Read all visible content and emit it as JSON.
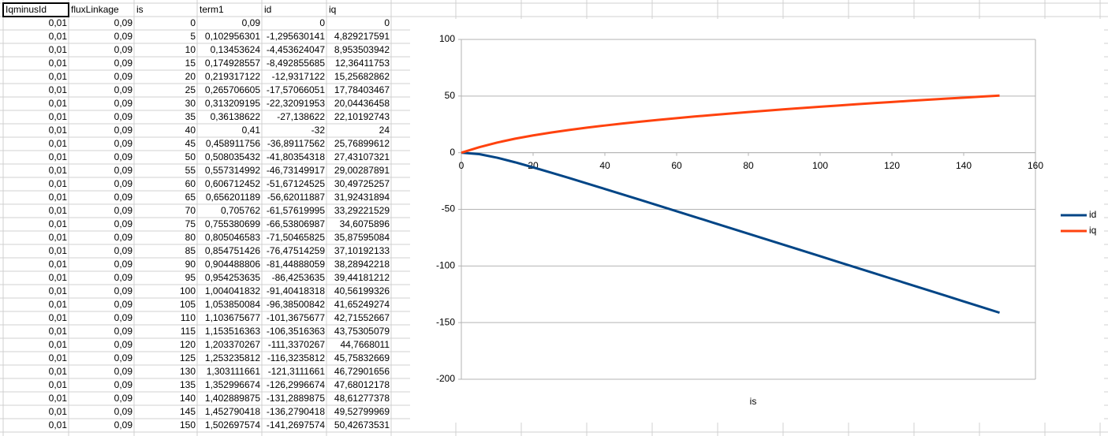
{
  "table": {
    "header": [
      "IqminusId",
      "fluxLinkage",
      "is",
      "term1",
      "id",
      "iq"
    ],
    "rows": [
      [
        "0,01",
        "0,09",
        "0",
        "0,09",
        "0",
        "0"
      ],
      [
        "0,01",
        "0,09",
        "5",
        "0,102956301",
        "-1,295630141",
        "4,829217591"
      ],
      [
        "0,01",
        "0,09",
        "10",
        "0,13453624",
        "-4,453624047",
        "8,953503942"
      ],
      [
        "0,01",
        "0,09",
        "15",
        "0,174928557",
        "-8,492855685",
        "12,36411753"
      ],
      [
        "0,01",
        "0,09",
        "20",
        "0,219317122",
        "-12,9317122",
        "15,25682862"
      ],
      [
        "0,01",
        "0,09",
        "25",
        "0,265706605",
        "-17,57066051",
        "17,78403467"
      ],
      [
        "0,01",
        "0,09",
        "30",
        "0,313209195",
        "-22,32091953",
        "20,04436458"
      ],
      [
        "0,01",
        "0,09",
        "35",
        "0,36138622",
        "-27,138622",
        "22,10192743"
      ],
      [
        "0,01",
        "0,09",
        "40",
        "0,41",
        "-32",
        "24"
      ],
      [
        "0,01",
        "0,09",
        "45",
        "0,458911756",
        "-36,89117562",
        "25,76899612"
      ],
      [
        "0,01",
        "0,09",
        "50",
        "0,508035432",
        "-41,80354318",
        "27,43107321"
      ],
      [
        "0,01",
        "0,09",
        "55",
        "0,557314992",
        "-46,73149917",
        "29,00287891"
      ],
      [
        "0,01",
        "0,09",
        "60",
        "0,606712452",
        "-51,67124525",
        "30,49725257"
      ],
      [
        "0,01",
        "0,09",
        "65",
        "0,656201189",
        "-56,62011887",
        "31,92431894"
      ],
      [
        "0,01",
        "0,09",
        "70",
        "0,705762",
        "-61,57619995",
        "33,29221529"
      ],
      [
        "0,01",
        "0,09",
        "75",
        "0,755380699",
        "-66,53806987",
        "34,6075896"
      ],
      [
        "0,01",
        "0,09",
        "80",
        "0,805046583",
        "-71,50465825",
        "35,87595084"
      ],
      [
        "0,01",
        "0,09",
        "85",
        "0,854751426",
        "-76,47514259",
        "37,10192133"
      ],
      [
        "0,01",
        "0,09",
        "90",
        "0,904488806",
        "-81,44888059",
        "38,28942218"
      ],
      [
        "0,01",
        "0,09",
        "95",
        "0,954253635",
        "-86,4253635",
        "39,44181212"
      ],
      [
        "0,01",
        "0,09",
        "100",
        "1,004041832",
        "-91,40418318",
        "40,56199326"
      ],
      [
        "0,01",
        "0,09",
        "105",
        "1,053850084",
        "-96,38500842",
        "41,65249274"
      ],
      [
        "0,01",
        "0,09",
        "110",
        "1,103675677",
        "-101,3675677",
        "42,71552667"
      ],
      [
        "0,01",
        "0,09",
        "115",
        "1,153516363",
        "-106,3516363",
        "43,75305079"
      ],
      [
        "0,01",
        "0,09",
        "120",
        "1,203370267",
        "-111,3370267",
        "44,7668011"
      ],
      [
        "0,01",
        "0,09",
        "125",
        "1,253235812",
        "-116,3235812",
        "45,75832669"
      ],
      [
        "0,01",
        "0,09",
        "130",
        "1,303111661",
        "-121,3111661",
        "46,72901656"
      ],
      [
        "0,01",
        "0,09",
        "135",
        "1,352996674",
        "-126,2996674",
        "47,68012178"
      ],
      [
        "0,01",
        "0,09",
        "140",
        "1,402889875",
        "-131,2889875",
        "48,61277378"
      ],
      [
        "0,01",
        "0,09",
        "145",
        "1,452790418",
        "-136,2790418",
        "49,52799969"
      ],
      [
        "0,01",
        "0,09",
        "150",
        "1,502697574",
        "-141,2697574",
        "50,42673531"
      ]
    ]
  },
  "chart_data": {
    "type": "line",
    "x_label": "is",
    "x": [
      0,
      5,
      10,
      15,
      20,
      25,
      30,
      35,
      40,
      45,
      50,
      55,
      60,
      65,
      70,
      75,
      80,
      85,
      90,
      95,
      100,
      105,
      110,
      115,
      120,
      125,
      130,
      135,
      140,
      145,
      150
    ],
    "series": [
      {
        "name": "id",
        "color": "#004586",
        "values": [
          0,
          -1.295630141,
          -4.453624047,
          -8.492855685,
          -12.9317122,
          -17.57066051,
          -22.32091953,
          -27.138622,
          -32,
          -36.89117562,
          -41.80354318,
          -46.73149917,
          -51.67124525,
          -56.62011887,
          -61.57619995,
          -66.53806987,
          -71.50465825,
          -76.47514259,
          -81.44888059,
          -86.4253635,
          -91.40418318,
          -96.38500842,
          -101.3675677,
          -106.3516363,
          -111.3370267,
          -116.3235812,
          -121.3111661,
          -126.2996674,
          -131.2889875,
          -136.2790418,
          -141.2697574
        ]
      },
      {
        "name": "iq",
        "color": "#ff420e",
        "values": [
          0,
          4.829217591,
          8.953503942,
          12.36411753,
          15.25682862,
          17.78403467,
          20.04436458,
          22.10192743,
          24,
          25.76899612,
          27.43107321,
          29.00287891,
          30.49725257,
          31.92431894,
          33.29221529,
          34.6075896,
          35.87595084,
          37.10192133,
          38.28942218,
          39.44181212,
          40.56199326,
          41.65249274,
          42.71552667,
          43.75305079,
          44.7668011,
          45.75832669,
          46.72901656,
          47.68012178,
          48.61277378,
          49.52799969,
          50.42673531
        ]
      }
    ],
    "xlim": [
      0,
      160
    ],
    "xticks": [
      0,
      20,
      40,
      60,
      80,
      100,
      120,
      140,
      160
    ],
    "ylim": [
      -200,
      100
    ],
    "yticks": [
      -200,
      -150,
      -100,
      -50,
      0,
      50,
      100
    ],
    "grid": true,
    "legend": "right"
  }
}
